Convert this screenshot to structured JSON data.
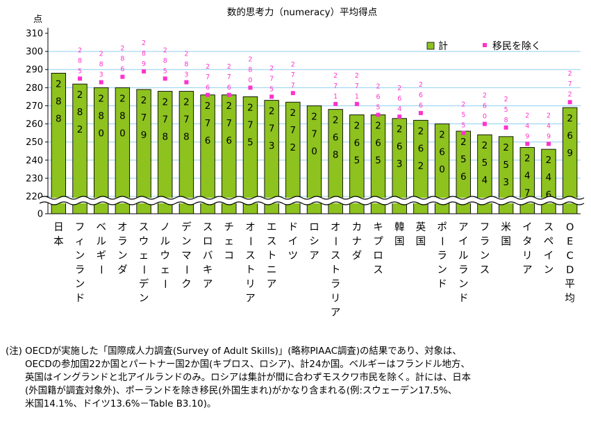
{
  "chart_data": {
    "type": "bar",
    "title": "数的思考力（numeracy）平均得点",
    "ylabel": "点",
    "ylim": [
      210,
      310
    ],
    "yticks": [
      0,
      220,
      230,
      240,
      250,
      260,
      270,
      280,
      290,
      300,
      310
    ],
    "axis_break": true,
    "grid": true,
    "legend_position": "top-right",
    "categories": [
      "日本",
      "フィンランド",
      "ベルギー",
      "オランダ",
      "スウェーデン",
      "ノルウェー",
      "デンマーク",
      "スロバキア",
      "チェコ",
      "オーストリア",
      "エストニア",
      "ドイツ",
      "ロシア",
      "オーストラリア",
      "カナダ",
      "キプロス",
      "韓国",
      "英国",
      "ポーランド",
      "アイルランド",
      "フランス",
      "米国",
      "イタリア",
      "スペイン",
      "OECD平均"
    ],
    "series": [
      {
        "name": "計",
        "type": "bar",
        "color": "#8dc21f",
        "values": [
          288,
          282,
          280,
          280,
          279,
          278,
          278,
          276,
          276,
          275,
          273,
          272,
          270,
          268,
          265,
          265,
          263,
          262,
          260,
          256,
          254,
          253,
          247,
          246,
          269
        ]
      },
      {
        "name": "移民を除く",
        "type": "marker",
        "color": "#ff33cc",
        "values": [
          null,
          285,
          283,
          286,
          289,
          285,
          283,
          276,
          276,
          280,
          275,
          277,
          null,
          271,
          271,
          265,
          264,
          266,
          null,
          255,
          260,
          258,
          249,
          249,
          272
        ]
      }
    ]
  },
  "note": {
    "lines": [
      "(注) OECDが実施した「国際成人力調査(Survey of Adult Skills)」(略称PIAAC調査)の結果であり、対象は、",
      "OECDの参加国22か国とパートナー国2か国(キプロス、ロシア)、計24か国。ベルギーはフランドル地方、",
      "英国はイングランドと北アイルランドのみ。ロシアは集計が間に合わずモスクワ市民を除く。計には、日本",
      "(外国籍が調査対象外)、ポーランドを除き移民(外国生まれ)がかなり含まれる(例:スウェーデン17.5%、",
      "米国14.1%、ドイツ13.6%－Table B3.10)。"
    ]
  }
}
